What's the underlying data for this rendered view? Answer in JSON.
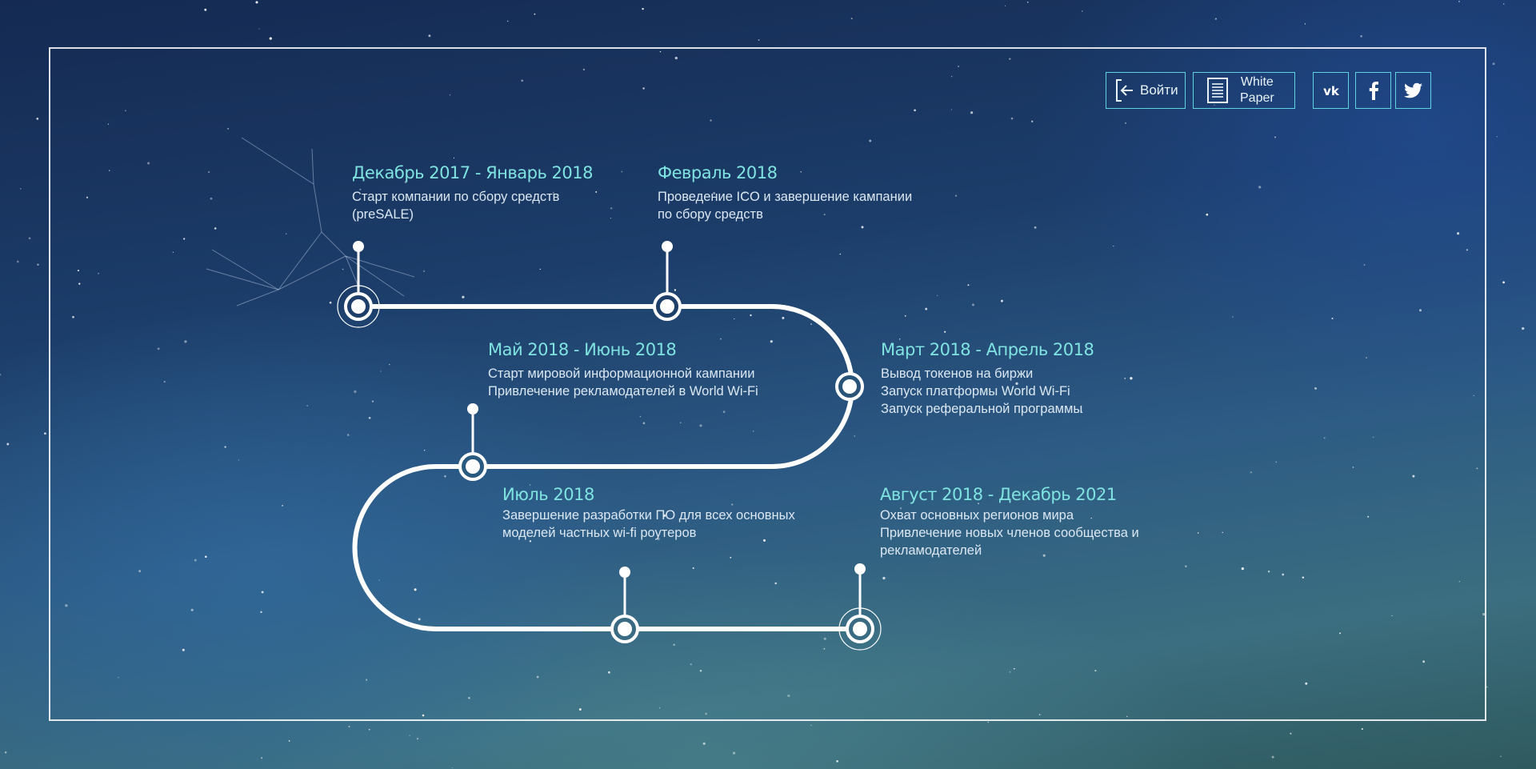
{
  "header": {
    "login_label": "Войти",
    "white_paper_line1": "White",
    "white_paper_line2": "Paper",
    "social": {
      "vk_icon": "vk-icon",
      "facebook_icon": "facebook-icon",
      "twitter_icon": "twitter-icon"
    }
  },
  "colors": {
    "accent": "#7fe3e0",
    "button_border": "#5fd3e0",
    "text": "#dbe7f2"
  },
  "roadmap": {
    "milestones": [
      {
        "title": "Декабрь 2017 - Январь 2018",
        "lines": [
          "Старт компании по сбору средств",
          "(preSALE)"
        ]
      },
      {
        "title": "Февраль 2018",
        "lines": [
          "Проведение ICO и завершение кампании",
          "по сбору средств"
        ]
      },
      {
        "title": "Март 2018 - Апрель 2018",
        "lines": [
          "Вывод токенов на биржи",
          "Запуск платформы World Wi-Fi",
          "Запуск реферальной программы"
        ]
      },
      {
        "title": "Май 2018 - Июнь 2018",
        "lines": [
          "Старт мировой информационной кампании",
          "Привлечение рекламодателей в World Wi-Fi"
        ]
      },
      {
        "title": "Июль 2018",
        "lines": [
          "Завершение разработки ПО для всех основных",
          "моделей частных wi-fi роутеров"
        ]
      },
      {
        "title": "Август 2018 - Декабрь 2021",
        "lines": [
          "Охват основных регионов мира",
          "Привлечение новых членов сообщества и",
          "рекламодателей"
        ]
      }
    ]
  }
}
